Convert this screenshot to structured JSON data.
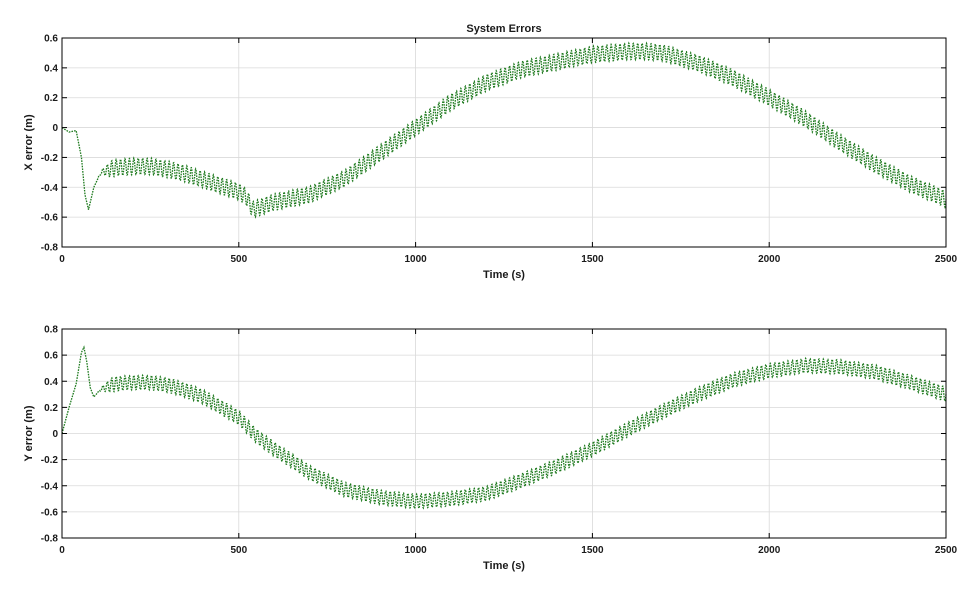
{
  "chart_data": [
    {
      "type": "line",
      "title": "System Errors",
      "xlabel": "Time (s)",
      "ylabel": "X error (m)",
      "xlim": [
        0,
        2500
      ],
      "ylim": [
        -0.8,
        0.6
      ],
      "xticks": [
        0,
        500,
        1000,
        1500,
        2000,
        2500
      ],
      "yticks": [
        -0.8,
        -0.6,
        -0.4,
        -0.2,
        0,
        0.2,
        0.4,
        0.6
      ],
      "xtick_labels": [
        "0",
        "500",
        "1000",
        "1500",
        "2000",
        "2500"
      ],
      "ytick_labels": [
        "-0.8",
        "-0.6",
        "-0.4",
        "-0.2",
        "0",
        "0.2",
        "0.4",
        "0.6"
      ],
      "grid": true,
      "line_color": "#1e7a1e",
      "oscillation": {
        "period": 12.5,
        "amplitude": 0.055
      },
      "series": [
        {
          "x": [
            0,
            20,
            40,
            55,
            65,
            75,
            90,
            110,
            150,
            200,
            250,
            300,
            350,
            400,
            450,
            500,
            520,
            540,
            600,
            700,
            800,
            900,
            1000,
            1100,
            1200,
            1300,
            1400,
            1500,
            1600,
            1650,
            1700,
            1800,
            1900,
            2000,
            2100,
            2200,
            2300,
            2400,
            2500
          ],
          "y": [
            0,
            -0.03,
            -0.02,
            -0.2,
            -0.45,
            -0.55,
            -0.4,
            -0.3,
            -0.27,
            -0.26,
            -0.26,
            -0.28,
            -0.31,
            -0.35,
            -0.39,
            -0.43,
            -0.46,
            -0.55,
            -0.5,
            -0.45,
            -0.34,
            -0.17,
            0.0,
            0.17,
            0.3,
            0.39,
            0.44,
            0.49,
            0.51,
            0.51,
            0.5,
            0.43,
            0.33,
            0.2,
            0.06,
            -0.1,
            -0.25,
            -0.38,
            -0.48
          ]
        }
      ]
    },
    {
      "type": "line",
      "title": "",
      "xlabel": "Time (s)",
      "ylabel": "Y error (m)",
      "xlim": [
        0,
        2500
      ],
      "ylim": [
        -0.8,
        0.8
      ],
      "xticks": [
        0,
        500,
        1000,
        1500,
        2000,
        2500
      ],
      "yticks": [
        -0.8,
        -0.6,
        -0.4,
        -0.2,
        0,
        0.2,
        0.4,
        0.6,
        0.8
      ],
      "xtick_labels": [
        "0",
        "500",
        "1000",
        "1500",
        "2000",
        "2500"
      ],
      "ytick_labels": [
        "-0.8",
        "-0.6",
        "-0.4",
        "-0.2",
        "0",
        "0.2",
        "0.4",
        "0.6",
        "0.8"
      ],
      "grid": true,
      "line_color": "#1e7a1e",
      "oscillation": {
        "period": 12.5,
        "amplitude": 0.055
      },
      "series": [
        {
          "x": [
            0,
            20,
            40,
            55,
            62,
            70,
            80,
            90,
            110,
            150,
            200,
            250,
            300,
            350,
            400,
            450,
            500,
            550,
            600,
            700,
            800,
            900,
            1000,
            1100,
            1200,
            1300,
            1400,
            1500,
            1600,
            1700,
            1800,
            1900,
            2000,
            2100,
            2200,
            2300,
            2400,
            2500
          ],
          "y": [
            0,
            0.2,
            0.38,
            0.62,
            0.66,
            0.55,
            0.35,
            0.28,
            0.34,
            0.38,
            0.39,
            0.39,
            0.37,
            0.33,
            0.28,
            0.2,
            0.12,
            -0.02,
            -0.12,
            -0.3,
            -0.43,
            -0.49,
            -0.52,
            -0.5,
            -0.46,
            -0.36,
            -0.25,
            -0.12,
            0.03,
            0.17,
            0.3,
            0.41,
            0.48,
            0.52,
            0.51,
            0.47,
            0.39,
            0.3
          ]
        }
      ]
    }
  ]
}
